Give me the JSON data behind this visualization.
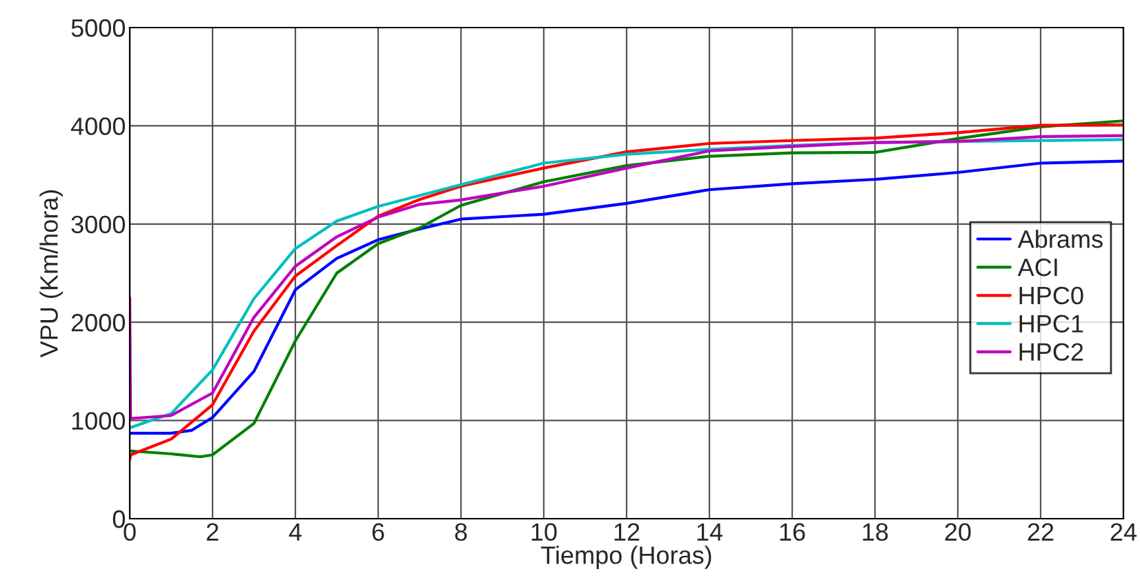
{
  "chart_data": {
    "type": "line",
    "xlabel": "Tiempo (Horas)",
    "ylabel": "VPU (Km/hora)",
    "xlim": [
      0,
      24
    ],
    "xticks": [
      0,
      2,
      4,
      6,
      8,
      10,
      12,
      14,
      16,
      18,
      20,
      22,
      24
    ],
    "ylim": [
      0,
      5000
    ],
    "yticks": [
      0,
      1000,
      2000,
      3000,
      4000,
      5000
    ],
    "grid": true,
    "legend": "right",
    "line_style": "solid",
    "marker": "none",
    "series": [
      {
        "name": "Abrams",
        "color": "#0000ff",
        "x": [
          0,
          1,
          1.5,
          2,
          3,
          4,
          5,
          6,
          7,
          8,
          10,
          12,
          14,
          16,
          18,
          20,
          22,
          24
        ],
        "values": [
          870,
          870,
          900,
          1030,
          1500,
          2330,
          2650,
          2840,
          2950,
          3050,
          3100,
          3210,
          3350,
          3410,
          3455,
          3525,
          3620,
          3640
        ]
      },
      {
        "name": "ACI",
        "color": "#008000",
        "x": [
          0,
          1,
          1.7,
          2,
          3,
          4,
          5,
          6,
          7,
          8,
          10,
          12,
          14,
          16,
          18,
          20,
          22,
          24
        ],
        "values": [
          690,
          660,
          630,
          650,
          970,
          1810,
          2500,
          2800,
          2960,
          3190,
          3430,
          3595,
          3690,
          3725,
          3730,
          3870,
          3990,
          4050
        ]
      },
      {
        "name": "HPC0",
        "color": "#ff0000",
        "x": [
          0,
          0.02,
          1,
          2,
          3,
          4,
          5,
          6,
          7,
          8,
          10,
          12,
          14,
          16,
          18,
          20,
          22,
          24
        ],
        "values": [
          600,
          650,
          810,
          1160,
          1910,
          2470,
          2780,
          3080,
          3250,
          3385,
          3570,
          3735,
          3820,
          3850,
          3875,
          3930,
          4005,
          4010
        ]
      },
      {
        "name": "HPC1",
        "color": "#00bfbf",
        "x": [
          0,
          1,
          2,
          3,
          4,
          5,
          6,
          8,
          10,
          12,
          14,
          16,
          18,
          20,
          22,
          24
        ],
        "values": [
          925,
          1070,
          1515,
          2240,
          2750,
          3030,
          3180,
          3400,
          3620,
          3710,
          3760,
          3800,
          3830,
          3840,
          3850,
          3860
        ]
      },
      {
        "name": "HPC2",
        "color": "#bf00bf",
        "x": [
          0,
          0.02,
          1,
          2,
          3,
          4,
          5,
          6,
          7,
          8,
          10,
          12,
          14,
          16,
          18,
          20,
          22,
          24
        ],
        "values": [
          2250,
          1020,
          1050,
          1280,
          2050,
          2570,
          2870,
          3070,
          3200,
          3245,
          3385,
          3570,
          3745,
          3790,
          3830,
          3840,
          3890,
          3900
        ]
      }
    ]
  }
}
